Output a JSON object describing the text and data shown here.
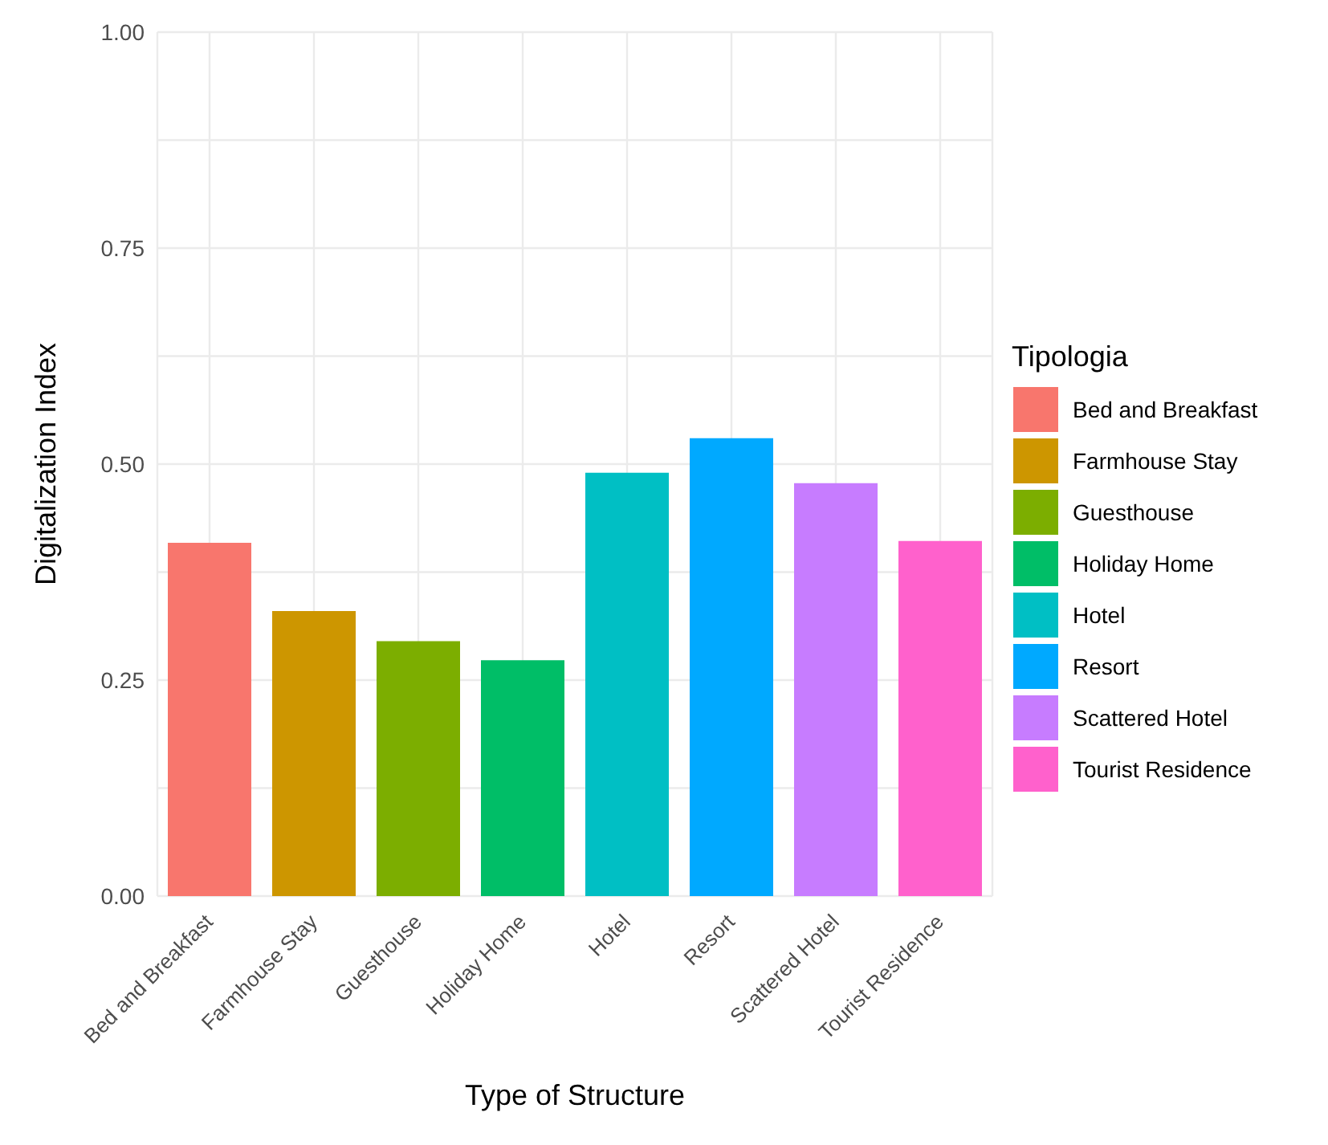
{
  "chart_data": {
    "type": "bar",
    "xlabel": "Type of Structure",
    "ylabel": "Digitalization Index",
    "legend_title": "Tipologia",
    "categories": [
      "Bed and Breakfast",
      "Farmhouse Stay",
      "Guesthouse",
      "Holiday Home",
      "Hotel",
      "Resort",
      "Scattered Hotel",
      "Tourist Residence"
    ],
    "stacked": true,
    "series": [
      {
        "name": "Bed and Breakfast",
        "color": "#f8766d",
        "values": [
          0.409,
          null,
          null,
          null,
          null,
          null,
          null,
          null
        ]
      },
      {
        "name": "Farmhouse Stay",
        "color": "#cd9600",
        "values": [
          null,
          0.33,
          null,
          null,
          null,
          null,
          null,
          null
        ]
      },
      {
        "name": "Guesthouse",
        "color": "#7cae00",
        "values": [
          null,
          null,
          0.295,
          null,
          null,
          null,
          null,
          null
        ]
      },
      {
        "name": "Holiday Home",
        "color": "#00be67",
        "values": [
          null,
          null,
          null,
          0.273,
          null,
          null,
          null,
          null
        ]
      },
      {
        "name": "Hotel",
        "color": "#00bfc4",
        "values": [
          null,
          null,
          null,
          null,
          0.49,
          null,
          null,
          null
        ]
      },
      {
        "name": "Resort",
        "color": "#00a9ff",
        "values": [
          null,
          null,
          null,
          null,
          null,
          0.53,
          null,
          null
        ]
      },
      {
        "name": "Scattered Hotel",
        "color": "#c77cff",
        "values": [
          null,
          null,
          null,
          null,
          null,
          null,
          0.478,
          null
        ]
      },
      {
        "name": "Tourist Residence",
        "color": "#ff61cc",
        "values": [
          null,
          null,
          null,
          null,
          null,
          null,
          null,
          0.411
        ]
      }
    ],
    "ylim": [
      0,
      1
    ],
    "yticks": [
      {
        "value": 0,
        "label": "0.00"
      },
      {
        "value": 0.125,
        "label": null
      },
      0.25,
      {
        "value": 0.375,
        "label": null
      },
      {
        "value": 0.5,
        "label": "0.50"
      },
      {
        "value": 0.625,
        "label": null
      },
      0.75,
      {
        "value": 0.875,
        "label": null
      },
      {
        "value": 1,
        "label": "1.00"
      }
    ],
    "grid": true,
    "legend": "right"
  }
}
